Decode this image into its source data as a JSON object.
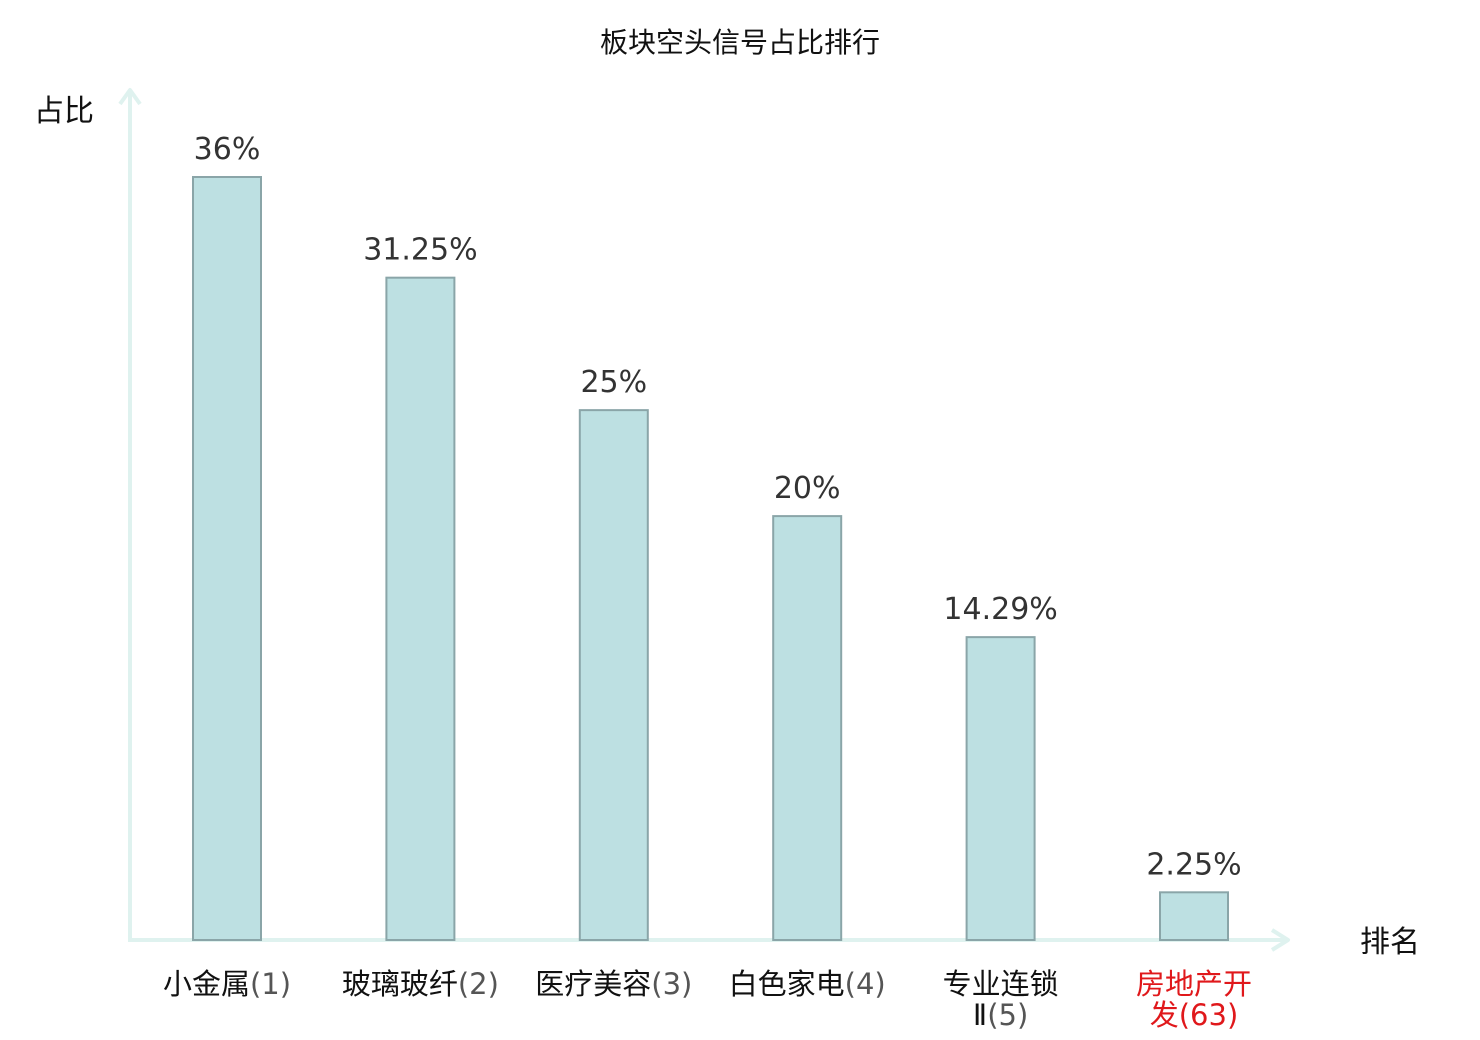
{
  "chart_data": {
    "type": "bar",
    "title": "板块空头信号占比排行",
    "ylabel": "占比",
    "xlabel": "排名",
    "ylim": [
      0,
      40
    ],
    "grid": false,
    "categories": [
      {
        "name_lines": [
          "小金属"
        ],
        "rank": "(1)",
        "rank_line": 0,
        "highlight": false
      },
      {
        "name_lines": [
          "玻璃玻纤"
        ],
        "rank": "(2)",
        "rank_line": 0,
        "highlight": false
      },
      {
        "name_lines": [
          "医疗美容"
        ],
        "rank": "(3)",
        "rank_line": 0,
        "highlight": false
      },
      {
        "name_lines": [
          "白色家电"
        ],
        "rank": "(4)",
        "rank_line": 0,
        "highlight": false
      },
      {
        "name_lines": [
          "专业连锁",
          "Ⅱ"
        ],
        "rank": "(5)",
        "rank_line": 1,
        "highlight": false
      },
      {
        "name_lines": [
          "房地产开",
          "发"
        ],
        "rank": "(63)",
        "rank_line": 1,
        "highlight": true
      }
    ],
    "values": [
      36,
      31.25,
      25,
      20,
      14.29,
      2.25
    ],
    "value_labels": [
      "36%",
      "31.25%",
      "25%",
      "20%",
      "14.29%",
      "2.25%"
    ],
    "colors": {
      "bar_fill": "#bde0e2",
      "bar_stroke": "#8aa5a8",
      "axis": "#dff2ef",
      "highlight_text": "#e0181b",
      "normal_text": "#111111"
    }
  }
}
